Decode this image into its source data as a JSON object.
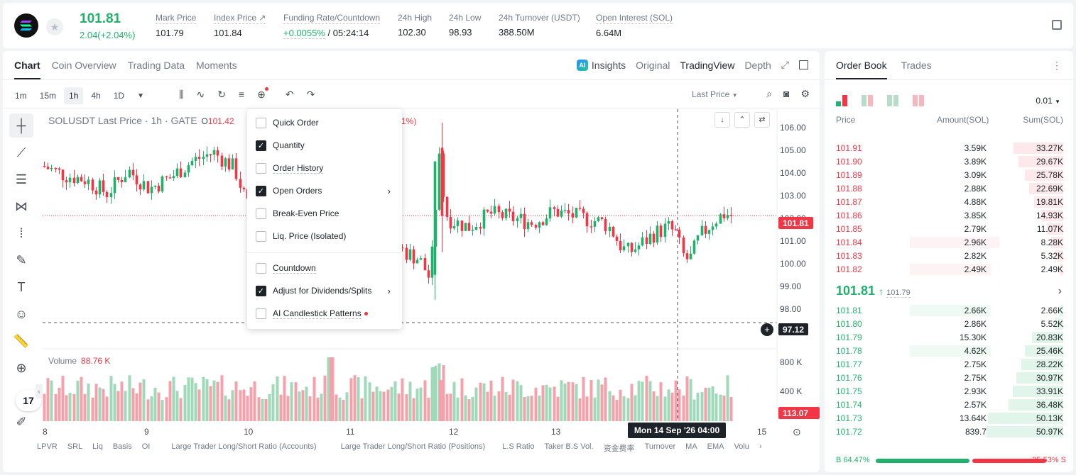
{
  "ticker": {
    "last_price": "101.81",
    "change": "2.04(+2.04%)",
    "stats": [
      {
        "label": "Mark Price",
        "value": "101.79"
      },
      {
        "label": "Index Price ↗",
        "value": "101.84"
      },
      {
        "label": "Funding Rate/Countdown",
        "value_green": "+0.0055%",
        "value_rest": " / 05:24:14"
      },
      {
        "label": "24h High",
        "value": "102.30"
      },
      {
        "label": "24h Low",
        "value": "98.93"
      },
      {
        "label": "24h Turnover (USDT)",
        "value": "388.50M"
      },
      {
        "label": "Open Interest (SOL)",
        "value": "6.64M"
      }
    ]
  },
  "chart_tabs": [
    "Chart",
    "Coin Overview",
    "Trading Data",
    "Moments"
  ],
  "view_tabs": [
    "Insights",
    "Original",
    "TradingView",
    "Depth"
  ],
  "timeframes": [
    "1m",
    "15m",
    "1h",
    "4h",
    "1D"
  ],
  "price_source": "Last Price",
  "legend": {
    "symbol": "SOLUSDT Last Price · 1h · GATE",
    "o_label": "O",
    "o_value": "101.42",
    "partial": "1%)"
  },
  "volume_legend": {
    "label": "Volume",
    "value": "88.76 K"
  },
  "menu": [
    {
      "label": "Quick Order",
      "checked": false,
      "submenu": false
    },
    {
      "label": "Quantity",
      "checked": true,
      "submenu": false
    },
    {
      "label": "Order History",
      "checked": false,
      "submenu": false
    },
    {
      "label": "Open Orders",
      "checked": true,
      "submenu": true
    },
    {
      "label": "Break-Even Price",
      "checked": false,
      "submenu": false
    },
    {
      "label": "Liq. Price (Isolated)",
      "checked": false,
      "submenu": false
    },
    {
      "label": "Countdown",
      "checked": false,
      "submenu": false
    },
    {
      "label": "Adjust for Dividends/Splits",
      "checked": true,
      "submenu": true
    },
    {
      "label": "AI Candlestick Patterns",
      "checked": false,
      "submenu": false
    }
  ],
  "y_axis": [
    "106.00",
    "105.00",
    "104.00",
    "103.00",
    "102.00",
    "101.00",
    "100.00",
    "99.00",
    "98.00"
  ],
  "vol_axis": [
    "800 K",
    "400 K"
  ],
  "price_tags": {
    "last": "101.81",
    "cursor": "97.12",
    "volume": "113.07 K"
  },
  "x_axis": [
    "8",
    "9",
    "10",
    "11",
    "12",
    "13",
    "15"
  ],
  "crosshair_date": "Mon 14 Sep '26   04:00",
  "indicators": [
    "LPVR",
    "SRL",
    "Liq",
    "Basis",
    "OI",
    "Large Trader Long/Short Ratio (Accounts)",
    "Large Trader Long/Short Ratio (Positions)",
    "L.S Ratio",
    "Taker B.S Vol.",
    "资金费率",
    "Turnover",
    "MA",
    "EMA",
    "Volu"
  ],
  "tv_logo": "17",
  "orderbook": {
    "tabs": [
      "Order Book",
      "Trades"
    ],
    "precision": "0.01",
    "headers": [
      "Price",
      "Amount(SOL)",
      "Sum(SOL)"
    ],
    "asks": [
      [
        "101.91",
        "3.59K",
        "33.27K",
        0.65,
        0
      ],
      [
        "101.90",
        "3.89K",
        "29.67K",
        0.58,
        0
      ],
      [
        "101.89",
        "3.09K",
        "25.78K",
        0.5,
        0
      ],
      [
        "101.88",
        "2.88K",
        "22.69K",
        0.44,
        0
      ],
      [
        "101.87",
        "4.88K",
        "19.81K",
        0.38,
        0
      ],
      [
        "101.86",
        "3.85K",
        "14.93K",
        0.29,
        0
      ],
      [
        "101.85",
        "2.79K",
        "11.07K",
        0.21,
        0
      ],
      [
        "101.84",
        "2.96K",
        "8.28K",
        0.16,
        0.42
      ],
      [
        "101.83",
        "2.82K",
        "5.32K",
        0.1,
        0
      ],
      [
        "101.82",
        "2.49K",
        "2.49K",
        0.05,
        0.38
      ]
    ],
    "mid_price": "101.81",
    "mid_mark": "101.79",
    "bids": [
      [
        "101.81",
        "2.66K",
        "2.66K",
        0.05,
        0.38
      ],
      [
        "101.80",
        "2.86K",
        "5.52K",
        0.11,
        0
      ],
      [
        "101.79",
        "15.30K",
        "20.83K",
        0.41,
        0
      ],
      [
        "101.78",
        "4.62K",
        "25.46K",
        0.5,
        0.38
      ],
      [
        "101.77",
        "2.75K",
        "28.22K",
        0.55,
        0
      ],
      [
        "101.76",
        "2.75K",
        "30.97K",
        0.61,
        0
      ],
      [
        "101.75",
        "2.93K",
        "33.91K",
        0.66,
        0
      ],
      [
        "101.74",
        "2.57K",
        "36.48K",
        0.71,
        0
      ],
      [
        "101.73",
        "13.64K",
        "50.13K",
        0.98,
        0
      ],
      [
        "101.72",
        "839.7",
        "50.97K",
        1.0,
        0
      ]
    ],
    "buy_ratio": "B 64.47%",
    "sell_ratio": "35.53% S"
  },
  "colors": {
    "up": "#20b26c",
    "down": "#f23645"
  }
}
